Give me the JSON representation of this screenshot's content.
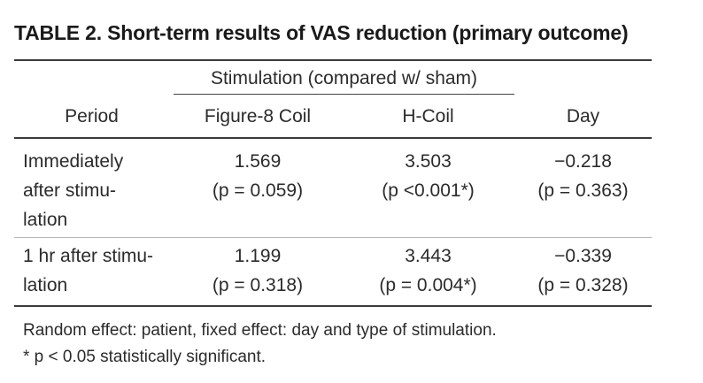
{
  "title": "TABLE 2. Short-term results of VAS reduction (primary outcome)",
  "group_header": "Stimulation (compared w/ sham)",
  "columns": [
    "Period",
    "Figure-8 Coil",
    "H-Coil",
    "Day"
  ],
  "rows": [
    {
      "period": "Immediately\n after stimu-\n lation",
      "fig8": "1.569\n(p = 0.059)",
      "hcoil": "3.503\n(p <0.001*)",
      "day": "−0.218\n(p = 0.363)"
    },
    {
      "period": "1 hr after stimu-\n lation",
      "fig8": "1.199\n(p = 0.318)",
      "hcoil": "3.443\n(p = 0.004*)",
      "day": "−0.339\n(p = 0.328)"
    }
  ],
  "notes": [
    "Random effect: patient, fixed effect: day and type of stimulation.",
    "*  p < 0.05 statistically significant."
  ]
}
